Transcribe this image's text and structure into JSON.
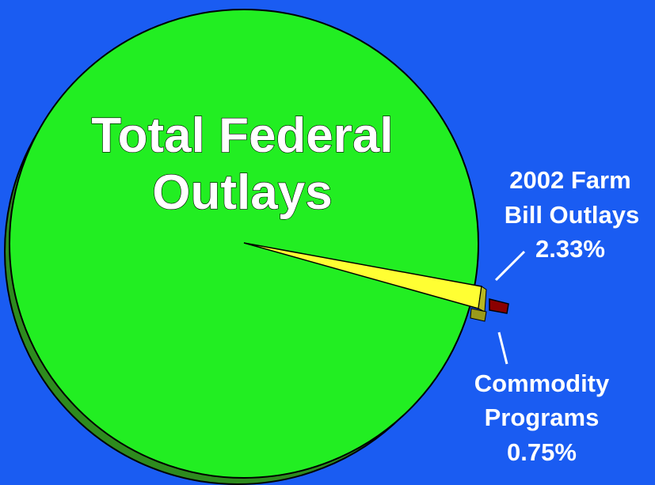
{
  "chart_data": {
    "type": "pie",
    "slices": [
      {
        "label": "Total Federal Outlays",
        "label_lines": [
          "Total Federal",
          "Outlays"
        ],
        "value_pct": null,
        "color": "#22ee22"
      },
      {
        "label": "2002 Farm Bill Outlays",
        "label_lines": [
          "2002 Farm",
          "Bill Outlays",
          "2.33%"
        ],
        "value_pct": 2.33,
        "color": "#ffff33"
      },
      {
        "label": "Commodity Programs",
        "label_lines": [
          "Commodity",
          "Programs",
          "0.75%"
        ],
        "value_pct": 0.75,
        "color": "#8b0000"
      }
    ],
    "title": "",
    "background": "#1a5cf2"
  }
}
